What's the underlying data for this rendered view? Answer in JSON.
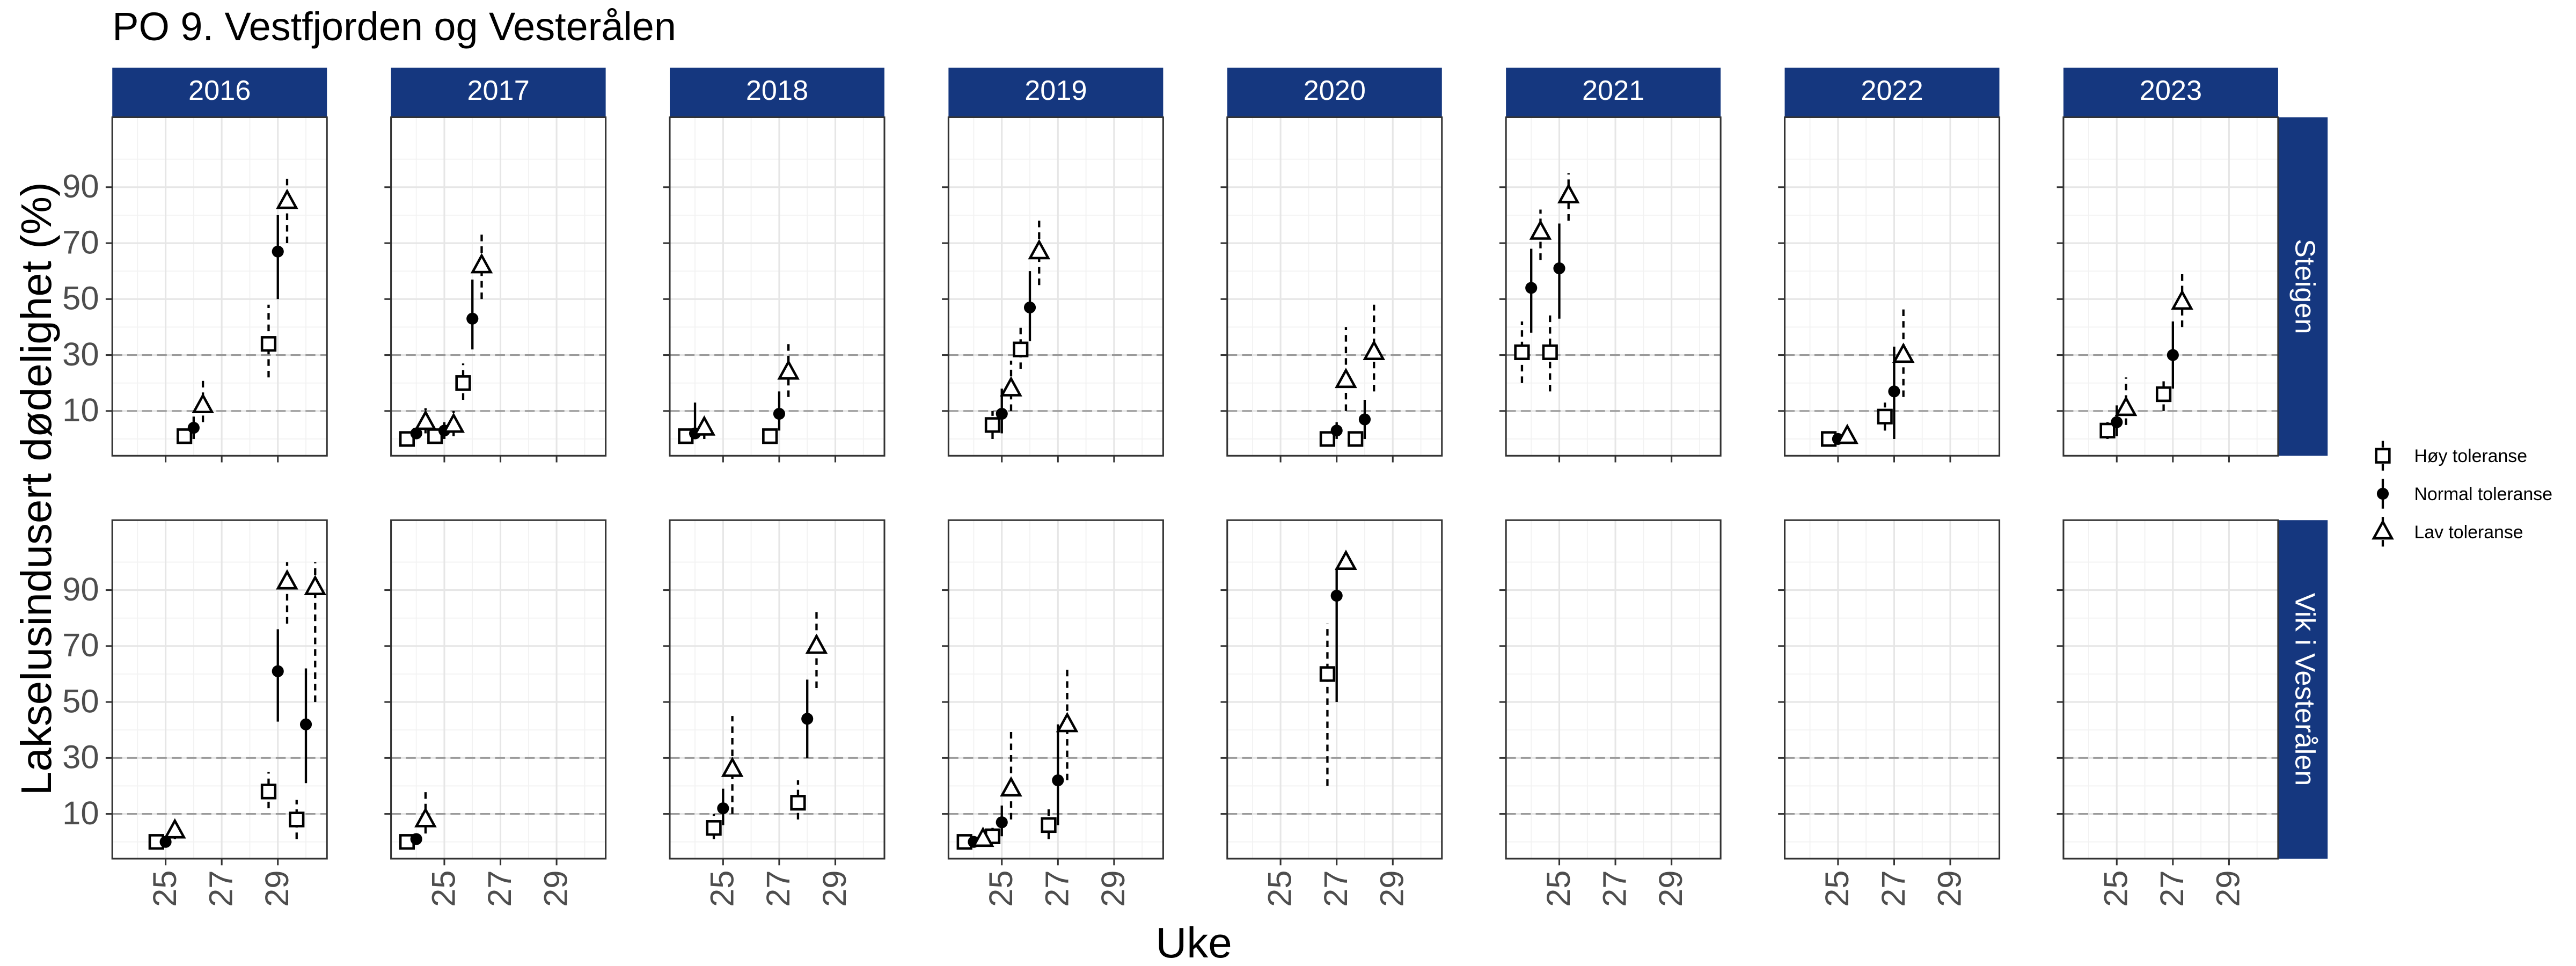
{
  "chart_data": {
    "type": "scatter",
    "title": "PO 9. Vestfjorden og Vesterålen",
    "x_label": "Uke",
    "y_label": "Lakselusindusert dødelighet (%)",
    "columns": [
      "2016",
      "2017",
      "2018",
      "2019",
      "2020",
      "2021",
      "2022",
      "2023"
    ],
    "rows": [
      "Steigen",
      "Vik i Vesterålen"
    ],
    "xlim": [
      23.1,
      30.75
    ],
    "xticks": [
      25,
      27,
      29
    ],
    "x_minor_ticks": [
      24,
      26,
      28,
      30
    ],
    "ylim": [
      -6,
      115
    ],
    "yticks": [
      10,
      30,
      50,
      70,
      90
    ],
    "y_minor_ticks": [
      0,
      20,
      40,
      60,
      80,
      100
    ],
    "reference_lines": [
      10,
      30
    ],
    "grid": true,
    "strip_color": "#15377f",
    "legend_position": "right",
    "series": [
      {
        "name": "Høy toleranse",
        "marker": "square",
        "color": "#000000",
        "line_style": "dashed"
      },
      {
        "name": "Normal toleranse",
        "marker": "circle",
        "color": "#000000",
        "line_style": "solid"
      },
      {
        "name": "Lav toleranse",
        "marker": "triangle",
        "color": "#000000",
        "line_style": "dashed"
      }
    ],
    "panels": [
      [
        {
          "x": [
            26,
            29
          ],
          "series": [
            {
              "y": [
                1,
                34
              ],
              "low": [
                0,
                22
              ],
              "high": [
                2,
                48
              ]
            },
            {
              "y": [
                4,
                67
              ],
              "low": [
                0,
                50
              ],
              "high": [
                8,
                80
              ]
            },
            {
              "y": [
                12,
                85
              ],
              "low": [
                6,
                70
              ],
              "high": [
                21,
                93
              ]
            }
          ]
        },
        {
          "x": [
            24,
            25,
            26
          ],
          "series": [
            {
              "y": [
                0,
                1,
                20
              ],
              "low": [
                0,
                0,
                14
              ],
              "high": [
                1,
                3,
                27
              ]
            },
            {
              "y": [
                2,
                3,
                43
              ],
              "low": [
                0,
                0,
                32
              ],
              "high": [
                4,
                6,
                57
              ]
            },
            {
              "y": [
                6,
                5,
                62
              ],
              "low": [
                2,
                1,
                50
              ],
              "high": [
                11,
                10,
                74
              ]
            }
          ]
        },
        {
          "x": [
            24,
            27
          ],
          "series": [
            {
              "y": [
                1,
                1
              ],
              "low": [
                0,
                0
              ],
              "high": [
                2,
                2
              ]
            },
            {
              "y": [
                2,
                9
              ],
              "low": [
                0,
                3
              ],
              "high": [
                13,
                17
              ]
            },
            {
              "y": [
                4,
                24
              ],
              "low": [
                0,
                15
              ],
              "high": [
                8,
                35
              ]
            }
          ]
        },
        {
          "x": [
            25,
            26
          ],
          "series": [
            {
              "y": [
                5,
                32
              ],
              "low": [
                0,
                25
              ],
              "high": [
                10,
                40
              ]
            },
            {
              "y": [
                9,
                47
              ],
              "low": [
                2,
                35
              ],
              "high": [
                18,
                60
              ]
            },
            {
              "y": [
                18,
                67
              ],
              "low": [
                10,
                55
              ],
              "high": [
                28,
                79
              ]
            }
          ]
        },
        {
          "x": [
            27,
            28
          ],
          "series": [
            {
              "y": [
                0,
                0
              ],
              "low": [
                0,
                0
              ],
              "high": [
                1,
                1
              ]
            },
            {
              "y": [
                3,
                7
              ],
              "low": [
                0,
                0
              ],
              "high": [
                6,
                14
              ]
            },
            {
              "y": [
                21,
                31
              ],
              "low": [
                10,
                17
              ],
              "high": [
                40,
                48
              ]
            }
          ]
        },
        {
          "x": [
            24,
            25
          ],
          "series": [
            {
              "y": [
                31,
                31
              ],
              "low": [
                20,
                17
              ],
              "high": [
                42,
                45
              ]
            },
            {
              "y": [
                54,
                61
              ],
              "low": [
                38,
                43
              ],
              "high": [
                68,
                77
              ]
            },
            {
              "y": [
                74,
                87
              ],
              "low": [
                64,
                78
              ],
              "high": [
                82,
                95
              ]
            }
          ]
        },
        {
          "x": [
            25,
            27
          ],
          "series": [
            {
              "y": [
                0,
                8
              ],
              "low": [
                0,
                3
              ],
              "high": [
                1,
                13
              ]
            },
            {
              "y": [
                0,
                17
              ],
              "low": [
                0,
                0
              ],
              "high": [
                1,
                33
              ]
            },
            {
              "y": [
                1,
                30
              ],
              "low": [
                0,
                15
              ],
              "high": [
                3,
                48
              ]
            }
          ]
        },
        {
          "x": [
            25,
            27
          ],
          "series": [
            {
              "y": [
                3,
                16
              ],
              "low": [
                0,
                10
              ],
              "high": [
                6,
                22
              ]
            },
            {
              "y": [
                6,
                30
              ],
              "low": [
                1,
                18
              ],
              "high": [
                12,
                42
              ]
            },
            {
              "y": [
                11,
                49
              ],
              "low": [
                5,
                40
              ],
              "high": [
                22,
                59
              ]
            }
          ]
        }
      ],
      [
        {
          "x": [
            25,
            29,
            30
          ],
          "series": [
            {
              "y": [
                0,
                18,
                8
              ],
              "low": [
                0,
                12,
                1
              ],
              "high": [
                1,
                25,
                15
              ]
            },
            {
              "y": [
                0,
                61,
                42
              ],
              "low": [
                0,
                43,
                21
              ],
              "high": [
                1,
                76,
                62
              ]
            },
            {
              "y": [
                4,
                93,
                91
              ],
              "low": [
                1,
                78,
                50
              ],
              "high": [
                7,
                100,
                100
              ]
            }
          ]
        },
        {
          "x": [
            24
          ],
          "series": [
            {
              "y": [
                0
              ],
              "low": [
                0
              ],
              "high": [
                1
              ]
            },
            {
              "y": [
                1
              ],
              "low": [
                0
              ],
              "high": [
                3
              ]
            },
            {
              "y": [
                8
              ],
              "low": [
                3
              ],
              "high": [
                18
              ]
            }
          ]
        },
        {
          "x": [
            25,
            28
          ],
          "series": [
            {
              "y": [
                5,
                14
              ],
              "low": [
                1,
                8
              ],
              "high": [
                10,
                22
              ]
            },
            {
              "y": [
                12,
                44
              ],
              "low": [
                6,
                30
              ],
              "high": [
                19,
                58
              ]
            },
            {
              "y": [
                26,
                70
              ],
              "low": [
                10,
                55
              ],
              "high": [
                45,
                83
              ]
            }
          ]
        },
        {
          "x": [
            24,
            25,
            27
          ],
          "series": [
            {
              "y": [
                0,
                2,
                6
              ],
              "low": [
                0,
                0,
                1
              ],
              "high": [
                1,
                5,
                12
              ]
            },
            {
              "y": [
                0,
                7,
                22
              ],
              "low": [
                0,
                2,
                6
              ],
              "high": [
                1,
                13,
                42
              ]
            },
            {
              "y": [
                1,
                19,
                42
              ],
              "low": [
                0,
                8,
                22
              ],
              "high": [
                3,
                41,
                63
              ]
            }
          ]
        },
        {
          "x": [
            27
          ],
          "series": [
            {
              "y": [
                60
              ],
              "low": [
                20
              ],
              "high": [
                78
              ]
            },
            {
              "y": [
                88
              ],
              "low": [
                50
              ],
              "high": [
                98
              ]
            },
            {
              "y": [
                100
              ],
              "low": [
                98
              ],
              "high": [
                100
              ]
            }
          ]
        },
        {
          "x": [],
          "series": [
            {
              "y": [],
              "low": [],
              "high": []
            },
            {
              "y": [],
              "low": [],
              "high": []
            },
            {
              "y": [],
              "low": [],
              "high": []
            }
          ]
        },
        {
          "x": [],
          "series": [
            {
              "y": [],
              "low": [],
              "high": []
            },
            {
              "y": [],
              "low": [],
              "high": []
            },
            {
              "y": [],
              "low": [],
              "high": []
            }
          ]
        },
        {
          "x": [],
          "series": [
            {
              "y": [],
              "low": [],
              "high": []
            },
            {
              "y": [],
              "low": [],
              "high": []
            },
            {
              "y": [],
              "low": [],
              "high": []
            }
          ]
        }
      ]
    ]
  }
}
